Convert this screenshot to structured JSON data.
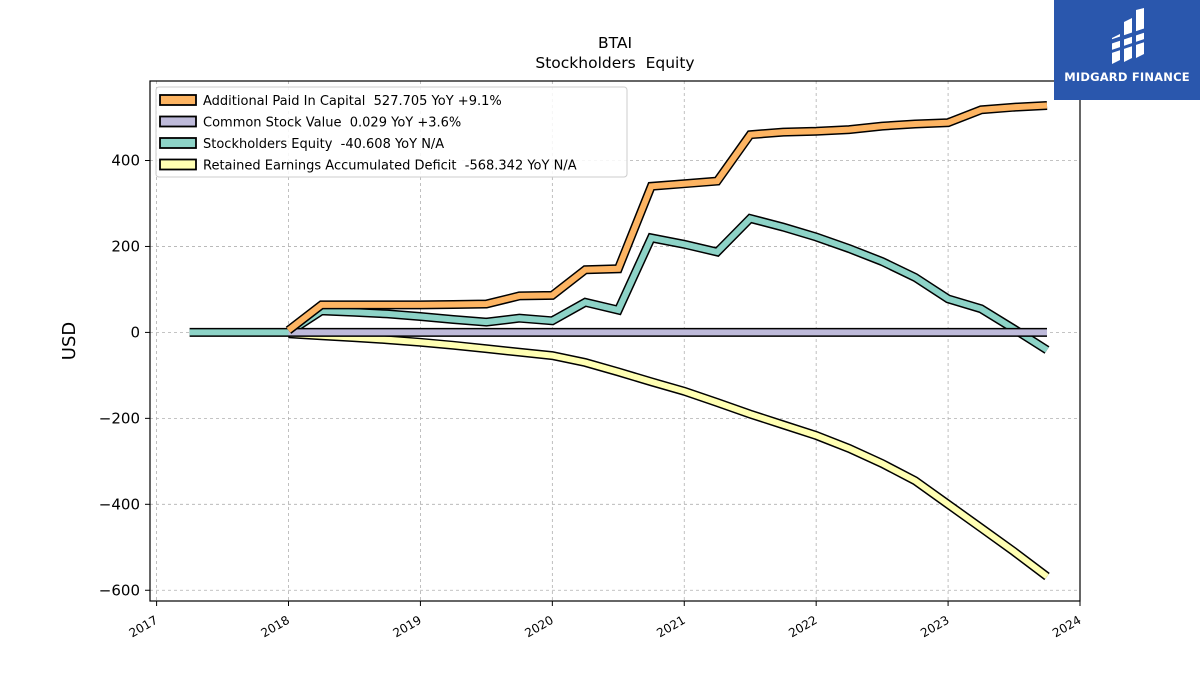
{
  "chart_data": {
    "type": "line",
    "title": "BTAI",
    "subtitle": "Stockholders  Equity",
    "ylabel": "USD",
    "xlabel": "",
    "xlim": [
      2016.95,
      2024.0
    ],
    "ylim": [
      -625,
      585
    ],
    "yticks": [
      -600,
      -400,
      -200,
      0,
      200,
      400
    ],
    "ytick_labels": [
      "−600",
      "−400",
      "−200",
      "0",
      "200",
      "400"
    ],
    "xticks": [
      2017,
      2018,
      2019,
      2020,
      2021,
      2022,
      2023,
      2024
    ],
    "xtick_labels": [
      "2017",
      "2018",
      "2019",
      "2020",
      "2021",
      "2022",
      "2023",
      "2024"
    ],
    "grid": true,
    "legend_position": "top-left",
    "series": [
      {
        "name": "Retained Earnings Accumulated Deficit  -568.342 YoY N/A",
        "color": "#ffffb3",
        "x": [
          2018.0,
          2018.25,
          2018.5,
          2018.75,
          2019.0,
          2019.25,
          2019.5,
          2019.75,
          2020.0,
          2020.25,
          2020.5,
          2020.75,
          2021.0,
          2021.25,
          2021.5,
          2021.75,
          2022.0,
          2022.25,
          2022.5,
          2022.75,
          2023.0,
          2023.25,
          2023.5,
          2023.75
        ],
        "y": [
          -3,
          -8,
          -12,
          -17,
          -23,
          -30,
          -38,
          -46,
          -54,
          -70,
          -92,
          -115,
          -137,
          -163,
          -190,
          -215,
          -240,
          -270,
          -305,
          -345,
          -400,
          -455,
          -510,
          -568
        ]
      },
      {
        "name": "Stockholders Equity  -40.608 YoY N/A",
        "color": "#8dd3c7",
        "x": [
          2017.25,
          2017.5,
          2017.75,
          2018.0,
          2018.25,
          2018.5,
          2018.75,
          2019.0,
          2019.25,
          2019.5,
          2019.75,
          2020.0,
          2020.25,
          2020.5,
          2020.75,
          2021.0,
          2021.25,
          2021.5,
          2021.75,
          2022.0,
          2022.25,
          2022.5,
          2022.75,
          2023.0,
          2023.25,
          2023.5,
          2023.75
        ],
        "y": [
          0,
          0,
          0,
          0,
          50,
          47,
          43,
          37,
          30,
          24,
          33,
          27,
          70,
          52,
          220,
          205,
          187,
          265,
          245,
          222,
          195,
          165,
          128,
          78,
          55,
          8,
          -41
        ]
      },
      {
        "name": "Common Stock Value  0.029 YoY +3.6%",
        "color": "#bebada",
        "x": [
          2018.0,
          2023.75
        ],
        "y": [
          0.028,
          0.029
        ]
      },
      {
        "name": "Additional Paid In Capital  527.705 YoY +9.1%",
        "color": "#fdb462",
        "x": [
          2018.0,
          2018.25,
          2018.5,
          2018.75,
          2019.0,
          2019.25,
          2019.5,
          2019.75,
          2020.0,
          2020.25,
          2020.5,
          2020.75,
          2021.0,
          2021.25,
          2021.5,
          2021.75,
          2022.0,
          2022.25,
          2022.5,
          2022.75,
          2023.0,
          2023.25,
          2023.5,
          2023.75
        ],
        "y": [
          5,
          64,
          64,
          64,
          64,
          65,
          66,
          85,
          86,
          146,
          148,
          340,
          346,
          352,
          460,
          466,
          468,
          472,
          480,
          485,
          488,
          518,
          524,
          528
        ]
      }
    ],
    "legend_order": [
      3,
      2,
      1,
      0
    ]
  },
  "logo": {
    "text": "MIDGARD FINANCE",
    "background": "#2a57ad"
  }
}
